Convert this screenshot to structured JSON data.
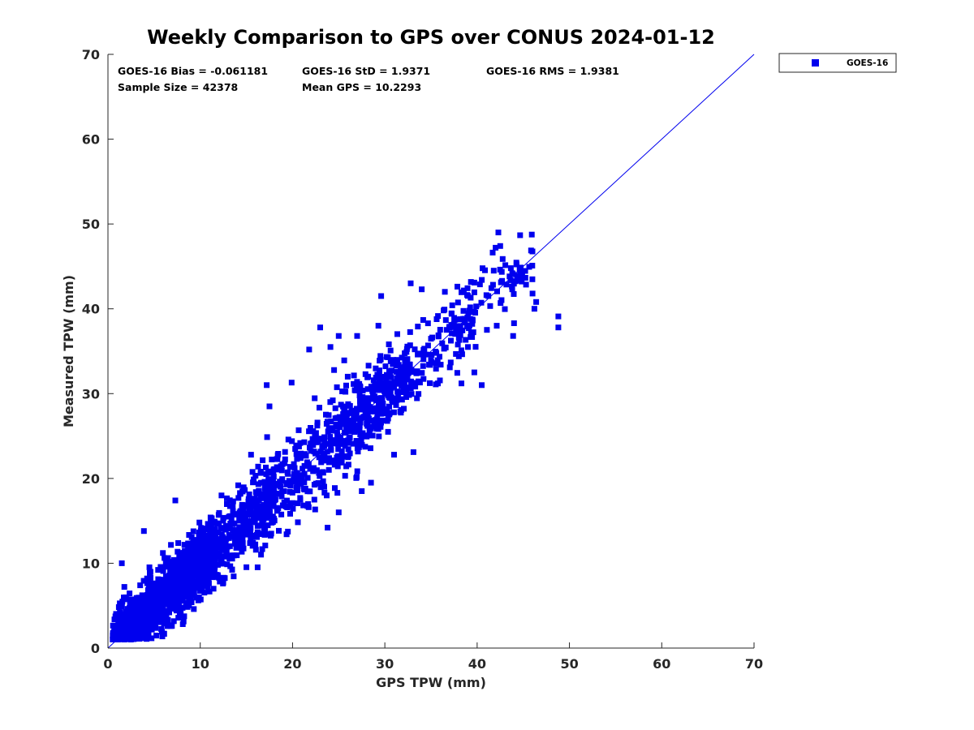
{
  "chart_data": {
    "type": "scatter",
    "title": "Weekly Comparison to GPS over CONUS 2024-01-12",
    "xlabel": "GPS TPW (mm)",
    "ylabel": "Measured TPW (mm)",
    "xlim": [
      0,
      70
    ],
    "ylim": [
      0,
      70
    ],
    "xticks": [
      "0",
      "10",
      "20",
      "30",
      "40",
      "50",
      "60",
      "70"
    ],
    "yticks": [
      "0",
      "10",
      "20",
      "30",
      "40",
      "50",
      "60",
      "70"
    ],
    "grid": false,
    "legend": {
      "position": "outside-top-right",
      "entries": [
        "GOES-16"
      ]
    },
    "reference_line": {
      "name": "one-to-one line",
      "from": [
        0,
        0
      ],
      "to": [
        70,
        70
      ]
    },
    "annotations": {
      "bias": "GOES-16 Bias = -0.061181",
      "std": "GOES-16 StD = 1.9371",
      "rms": "GOES-16 RMS = 1.9381",
      "sample_size": "Sample Size = 42378",
      "mean_gps": "Mean GPS = 10.2293"
    },
    "series": [
      {
        "name": "GOES-16",
        "color": "#0000ee",
        "marker": "square",
        "cloud_regions": [
          {
            "x_range": [
              0.5,
              6
            ],
            "y_spread": 2.3,
            "count": 650
          },
          {
            "x_range": [
              6,
              12
            ],
            "y_spread": 2.6,
            "count": 650
          },
          {
            "x_range": [
              12,
              18
            ],
            "y_spread": 3.0,
            "count": 320
          },
          {
            "x_range": [
              18,
              26
            ],
            "y_spread": 3.4,
            "count": 260
          },
          {
            "x_range": [
              26,
              33
            ],
            "y_spread": 3.3,
            "count": 330
          },
          {
            "x_range": [
              33,
              40
            ],
            "y_spread": 3.0,
            "count": 130
          },
          {
            "x_range": [
              40,
              46
            ],
            "y_spread": 2.6,
            "count": 50
          }
        ],
        "outliers": [
          [
            1.5,
            10.0
          ],
          [
            3.9,
            13.8
          ],
          [
            7.3,
            17.4
          ],
          [
            12.3,
            18.0
          ],
          [
            15.5,
            22.8
          ],
          [
            17.5,
            28.5
          ],
          [
            17.2,
            31.0
          ],
          [
            19.9,
            31.3
          ],
          [
            21.8,
            35.2
          ],
          [
            23.0,
            37.8
          ],
          [
            24.1,
            35.5
          ],
          [
            25.0,
            36.8
          ],
          [
            27.0,
            36.8
          ],
          [
            29.3,
            38.0
          ],
          [
            29.6,
            41.5
          ],
          [
            32.8,
            43.0
          ],
          [
            34.0,
            42.3
          ],
          [
            36.5,
            42.0
          ],
          [
            25.0,
            16.0
          ],
          [
            23.8,
            14.2
          ],
          [
            27.5,
            18.5
          ],
          [
            28.5,
            19.5
          ],
          [
            42.3,
            49.0
          ],
          [
            42.0,
            47.2
          ],
          [
            42.5,
            47.4
          ],
          [
            41.8,
            44.5
          ],
          [
            43.8,
            44.2
          ],
          [
            44.6,
            44.6
          ],
          [
            44.7,
            43.3
          ],
          [
            43.8,
            42.3
          ],
          [
            46.0,
            41.8
          ],
          [
            46.4,
            40.8
          ],
          [
            46.2,
            40.0
          ],
          [
            44.0,
            38.3
          ],
          [
            43.9,
            36.8
          ],
          [
            48.8,
            39.1
          ],
          [
            48.8,
            37.8
          ],
          [
            40.5,
            31.0
          ],
          [
            39.7,
            32.5
          ],
          [
            38.3,
            31.2
          ],
          [
            26.0,
            22.5
          ],
          [
            31.0,
            22.8
          ],
          [
            33.1,
            23.1
          ],
          [
            21.4,
            18.8
          ],
          [
            23.7,
            18.0
          ],
          [
            9.3,
            4.6
          ],
          [
            6.8,
            2.6
          ],
          [
            2.3,
            1.1
          ]
        ]
      }
    ]
  }
}
